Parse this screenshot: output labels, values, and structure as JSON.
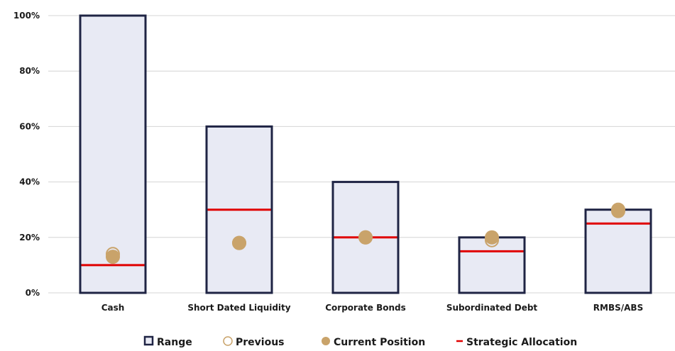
{
  "chart_data": {
    "type": "bar",
    "categories": [
      "Cash",
      "Short Dated Liquidity",
      "Corporate Bonds",
      "Subordinated Debt",
      "RMBS/ABS"
    ],
    "y_ticks": [
      "0%",
      "20%",
      "40%",
      "60%",
      "80%",
      "100%"
    ],
    "ylim": [
      0,
      100
    ],
    "grid": true,
    "legend_position": "bottom",
    "series": [
      {
        "name": "Range",
        "values": [
          100,
          60,
          40,
          20,
          30
        ]
      },
      {
        "name": "Previous",
        "values": [
          14,
          18,
          20,
          19,
          30
        ]
      },
      {
        "name": "Current Position",
        "values": [
          13,
          18,
          20,
          20,
          29.5
        ]
      },
      {
        "name": "Strategic Allocation",
        "values": [
          10,
          30,
          20,
          15,
          25
        ]
      }
    ],
    "colors": {
      "range_fill": "#e8eaf4",
      "range_stroke": "#1f2444",
      "marker": "#c9a36a",
      "strategic": "#e00000",
      "grid": "#d4d4d4"
    }
  }
}
